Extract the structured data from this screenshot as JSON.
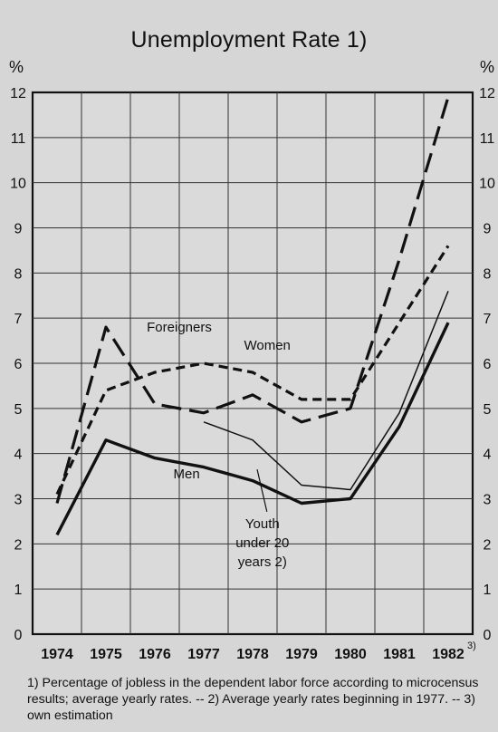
{
  "chart_data": {
    "type": "line",
    "title": "Unemployment Rate 1)",
    "y_unit_left": "%",
    "y_unit_right": "%",
    "x": [
      "1974",
      "1975",
      "1976",
      "1977",
      "1978",
      "1979",
      "1980",
      "1981",
      "1982"
    ],
    "x_last_note": "3)",
    "ylim": [
      0,
      12
    ],
    "yticks": [
      "0",
      "1",
      "2",
      "3",
      "4",
      "5",
      "6",
      "7",
      "8",
      "9",
      "10",
      "11",
      "12"
    ],
    "grid": true,
    "series": [
      {
        "name": "Foreigners",
        "style": "long-dash",
        "width": 3.2,
        "values": [
          2.9,
          6.8,
          5.1,
          4.9,
          5.3,
          4.7,
          5.0,
          8.3,
          11.9
        ]
      },
      {
        "name": "Women",
        "style": "short-dash",
        "width": 3.2,
        "values": [
          3.1,
          5.4,
          5.8,
          6.0,
          5.8,
          5.2,
          5.2,
          6.9,
          8.6
        ]
      },
      {
        "name": "Men",
        "style": "solid",
        "width": 3.4,
        "values": [
          2.2,
          4.3,
          3.9,
          3.7,
          3.4,
          2.9,
          3.0,
          4.6,
          6.9
        ]
      },
      {
        "name": "Youth under 20 years 2)",
        "style": "solid",
        "width": 1.5,
        "values": [
          null,
          null,
          null,
          4.7,
          4.3,
          3.3,
          3.2,
          4.9,
          7.6
        ]
      }
    ],
    "annotations": [
      {
        "series": "Foreigners",
        "lines": [
          "Foreigners"
        ],
        "x": 3,
        "y": 6.7
      },
      {
        "series": "Women",
        "lines": [
          "Women"
        ],
        "x": 4.8,
        "y": 6.3
      },
      {
        "series": "Men",
        "lines": [
          "Men"
        ],
        "x": 3.15,
        "y": 3.45
      },
      {
        "series": "Youth under 20 years 2)",
        "lines": [
          "Youth",
          "under 20",
          "years 2)"
        ],
        "x": 4.7,
        "y": 2.35
      }
    ]
  },
  "footnote": "1) Percentage of jobless in the dependent labor force according to microcensus results; average yearly rates. -- 2) Average yearly rates beginning in 1977. -- 3) own estimation"
}
